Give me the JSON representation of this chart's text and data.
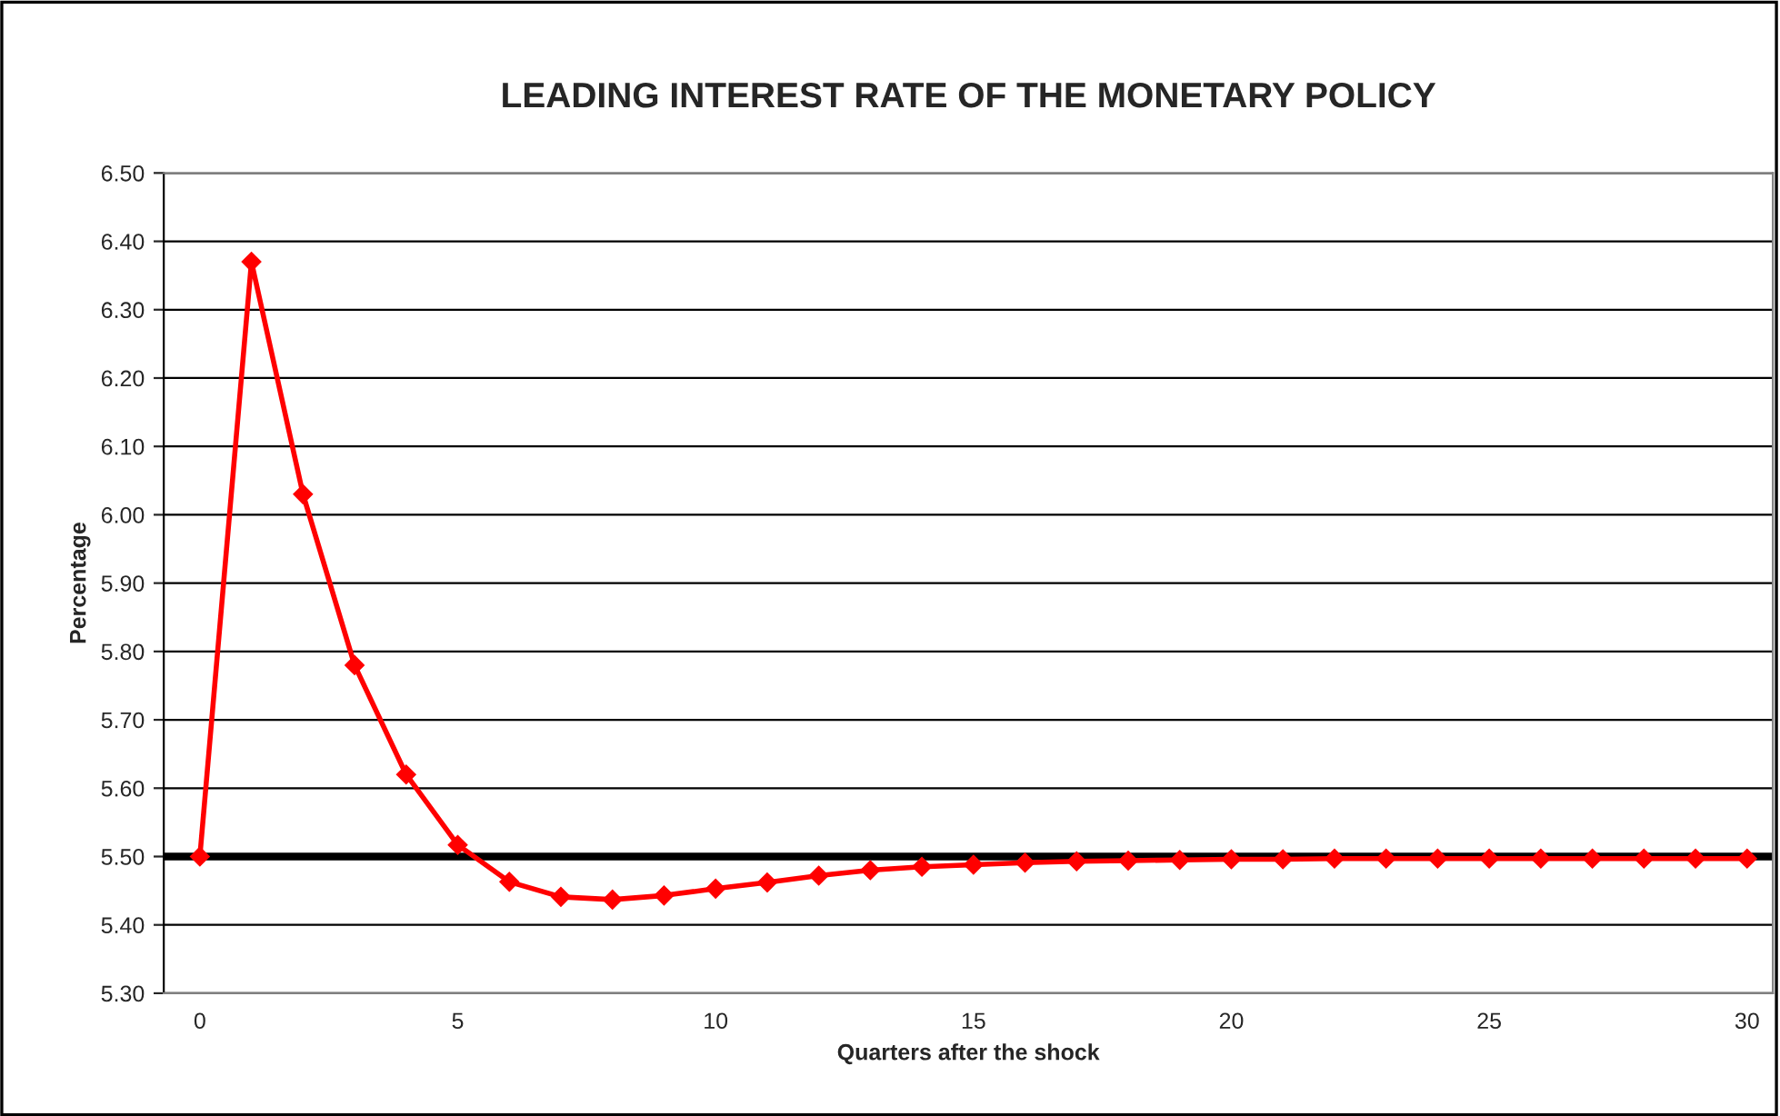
{
  "chart_data": {
    "type": "line",
    "title": "LEADING INTEREST RATE OF THE MONETARY POLICY",
    "xlabel": "Quarters after the shock",
    "ylabel": "Percentage",
    "x": [
      0,
      1,
      2,
      3,
      4,
      5,
      6,
      7,
      8,
      9,
      10,
      11,
      12,
      13,
      14,
      15,
      16,
      17,
      18,
      19,
      20,
      21,
      22,
      23,
      24,
      25,
      26,
      27,
      28,
      29,
      30
    ],
    "series": [
      {
        "color": "#ff0000",
        "values": [
          5.5,
          6.37,
          6.03,
          5.78,
          5.62,
          5.517,
          5.463,
          5.441,
          5.437,
          5.443,
          5.453,
          5.462,
          5.472,
          5.48,
          5.485,
          5.488,
          5.491,
          5.493,
          5.494,
          5.495,
          5.496,
          5.496,
          5.497,
          5.497,
          5.497,
          5.497,
          5.497,
          5.497,
          5.497,
          5.497,
          5.497
        ]
      }
    ],
    "xlim": [
      -0.7,
      30.5
    ],
    "xticks": [
      0,
      5,
      10,
      15,
      20,
      25,
      30
    ],
    "ylim": [
      5.3,
      6.5
    ],
    "yticks": [
      {
        "value": 5.3,
        "label": "5.30"
      },
      {
        "value": 5.4,
        "label": "5.40"
      },
      {
        "value": 5.5,
        "label": "5.50"
      },
      {
        "value": 5.6,
        "label": "5.60"
      },
      {
        "value": 5.7,
        "label": "5.70"
      },
      {
        "value": 5.8,
        "label": "5.80"
      },
      {
        "value": 5.9,
        "label": "5.90"
      },
      {
        "value": 6.0,
        "label": "6.00"
      },
      {
        "value": 6.1,
        "label": "6.10"
      },
      {
        "value": 6.2,
        "label": "6.20"
      },
      {
        "value": 6.3,
        "label": "6.30"
      },
      {
        "value": 6.4,
        "label": "6.40"
      },
      {
        "value": 6.5,
        "label": "6.50"
      }
    ],
    "ref_lines": [
      {
        "axis": "y",
        "value": 5.5,
        "color": "#000000"
      }
    ],
    "grid": "y",
    "marker": "diamond",
    "line_style": "solid",
    "legend": false
  }
}
